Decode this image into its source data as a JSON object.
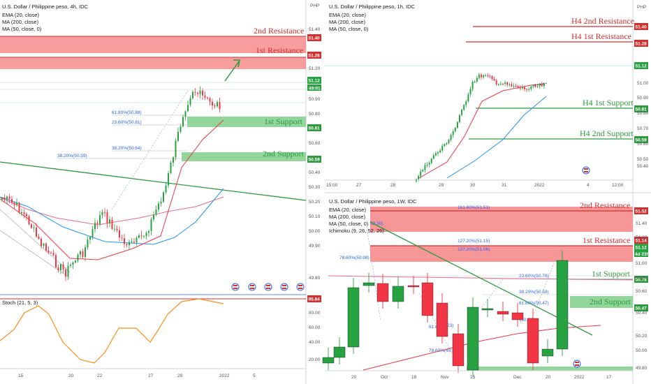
{
  "colors": {
    "up": "#26a241",
    "down": "#f23645",
    "resistance": "#d32f2f",
    "support": "#2e9a3e",
    "fib": "#2962ff",
    "stoch": "#ff8c1a",
    "ema": "#f23645",
    "ma200": "#e96b8f",
    "ma50": "#2196f3",
    "trend": "#2e9a3e"
  },
  "chart_data": [
    {
      "id": "4h",
      "type": "candlestick",
      "title": "U.S. Dollar / Philippine peso, 4h, IDC",
      "legend": [
        "EMA (20, close)",
        "MA (200, close)",
        "MA (50, close, 0)"
      ],
      "y_ticks": [
        "51.40",
        "51.20",
        "51.00",
        "50.90",
        "50.80",
        "50.70",
        "50.60",
        "50.50",
        "50.40",
        "50.30",
        "50.20",
        "50.10",
        "50.00",
        "49.90",
        "49.80"
      ],
      "x_ticks": [
        "15",
        "20",
        "22",
        "27",
        "29",
        "2022",
        "5"
      ],
      "levels": [
        {
          "label": "2nd Resistance",
          "price_tag": "51.40",
          "kind": "resistance"
        },
        {
          "label": "1st Resistance",
          "price_tag": "51.28",
          "kind": "resistance"
        },
        {
          "label": "1st Support",
          "price_tag": "50.81",
          "kind": "support"
        },
        {
          "label": "2nd Support",
          "price_tag": "50.59",
          "kind": "support"
        }
      ],
      "fibs": [
        "61.80%(50.88)",
        "23.60%(50.81)",
        "38.20%(50.64)",
        "38.20%(50.59)"
      ],
      "last_price": "51.12",
      "countdown": "49:01",
      "stoch": {
        "label": "Stoch (21, 5, 3)",
        "last": "95.84",
        "ticks": [
          "80.00",
          "60.00",
          "40.00",
          "20.00"
        ]
      }
    },
    {
      "id": "1h",
      "type": "candlestick",
      "title": "U.S. Dollar / Philippine peso, 1h, IDC",
      "legend": [
        "EMA (20, close)",
        "MA (200, close)",
        "MA (50, close, 0)"
      ],
      "y_ticks": [
        "51.00",
        "50.90",
        "50.80",
        "50.70",
        "50.60",
        "50.50",
        "50.40"
      ],
      "x_ticks": [
        "15:00",
        "27",
        "28",
        "29",
        "30",
        "31",
        "2022",
        "4",
        "12:00"
      ],
      "currency": "PHP",
      "levels": [
        {
          "label": "H4 2nd Resistance",
          "price_tag": "51.40",
          "kind": "resistance"
        },
        {
          "label": "H4 1st Resistance",
          "price_tag": "51.28",
          "kind": "resistance"
        },
        {
          "label": "H4 1st Support",
          "price_tag": "50.81",
          "kind": "support"
        },
        {
          "label": "H4 2nd Support",
          "price_tag": "50.59",
          "kind": "support"
        }
      ],
      "last_price": "51.12"
    },
    {
      "id": "1w",
      "type": "candlestick",
      "title": "U.S. Dollar / Philippine peso, 1W, IDC",
      "legend": [
        "EMA (20, close)",
        "MA (200, close)",
        "MA (50, close, 0)",
        "Ichimoku (9, 26, 52, 26)"
      ],
      "y_ticks": [
        "51.40",
        "51.20",
        "51.00",
        "50.80",
        "50.60",
        "50.40",
        "50.20",
        "50.00",
        "49.80"
      ],
      "x_ticks": [
        "20",
        "Oct",
        "18",
        "Nov",
        "15",
        "Dec",
        "20",
        "2022",
        "17"
      ],
      "levels": [
        {
          "label": "2nd Resistance",
          "price_tag": "51.52",
          "kind": "resistance"
        },
        {
          "label": "1st Resistance",
          "price_tag": "51.14",
          "kind": "resistance"
        },
        {
          "label": "1st Support",
          "price_tag": "50.78",
          "kind": "support"
        },
        {
          "label": "2nd Support",
          "price_tag": "50.47",
          "kind": "support"
        }
      ],
      "fibs": [
        "161.80%(51.51)",
        "127.20%(51.15)",
        "127.20%(51.06)",
        "78.60%(50.98)",
        "23.60%(50.78)",
        "38.20%(50.59)",
        "61.80%(50.47)",
        "61.8",
        "78.60%(49.9",
        "(50.2)",
        "50.30)",
        "23)"
      ],
      "last_price": "51.12",
      "countdown": "4d 23h"
    }
  ]
}
